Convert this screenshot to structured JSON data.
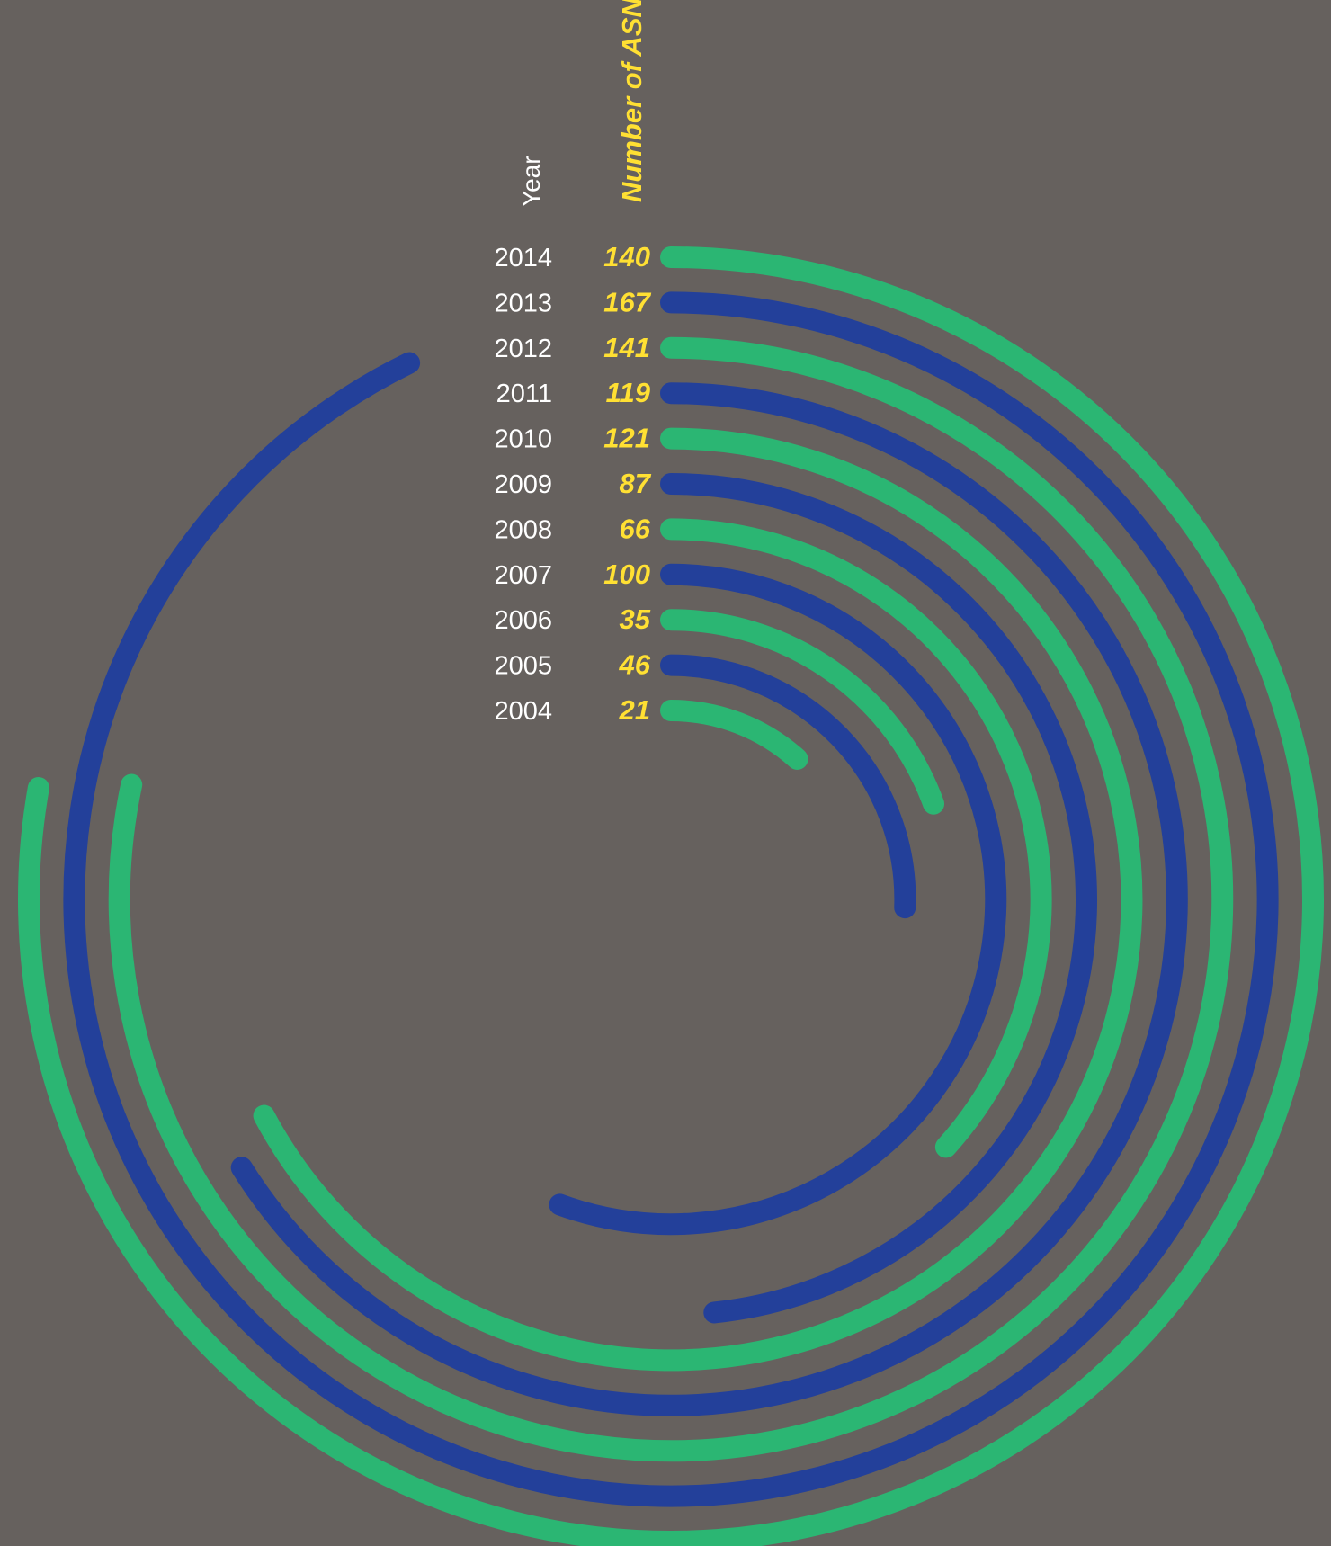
{
  "chart_data": {
    "type": "radial-bar",
    "column_headers": {
      "year": "Year",
      "value": "Number of ASNs"
    },
    "max_value": 180,
    "full_circle_value": 180,
    "colors": {
      "even_index": "#2bb673",
      "odd_index": "#23409a",
      "background": "#66615e",
      "value_text": "#ffe033",
      "year_text": "#ffffff"
    },
    "categories": [
      "2014",
      "2013",
      "2012",
      "2011",
      "2010",
      "2009",
      "2008",
      "2007",
      "2006",
      "2005",
      "2004"
    ],
    "values": [
      140,
      167,
      141,
      119,
      121,
      87,
      66,
      100,
      35,
      46,
      21
    ],
    "legend": "none",
    "grid": false
  }
}
